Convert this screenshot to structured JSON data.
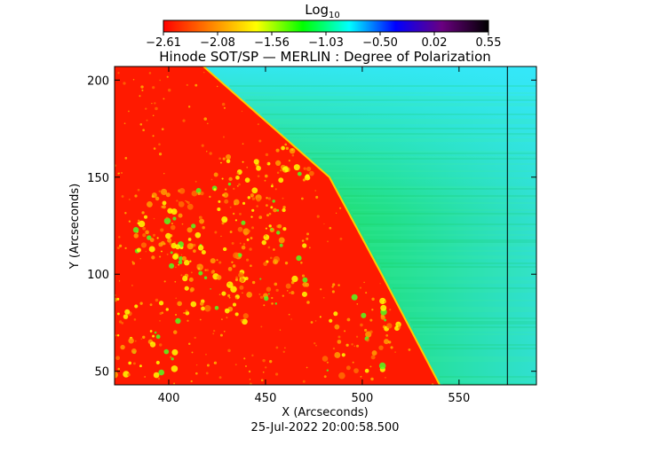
{
  "chart_data": {
    "type": "heatmap",
    "title": "Hinode SOT/SP — MERLIN : Degree of Polarization",
    "xlabel": "X (Arcseconds)",
    "ylabel": "Y (Arcseconds)",
    "xlim": [
      372,
      590
    ],
    "ylim": [
      43,
      207
    ],
    "x_ticks": [
      400,
      450,
      500,
      550
    ],
    "y_ticks": [
      50,
      100,
      150,
      200
    ],
    "colorbar": {
      "label_main": "Log",
      "label_sub": "10",
      "ticks": [
        "−2.61",
        "−2.08",
        "−1.56",
        "−1.03",
        "−0.50",
        "0.02",
        "0.55"
      ],
      "range": [
        -2.61,
        0.55
      ],
      "colors": [
        "#ff0000",
        "#ff8000",
        "#ffff00",
        "#00ff00",
        "#00ffff",
        "#0000ff",
        "#6a0080",
        "#000000"
      ]
    },
    "limb_x_at_y": [
      [
        43,
        540
      ],
      [
        100,
        510
      ],
      [
        150,
        483
      ],
      [
        207,
        418
      ]
    ],
    "vertical_line_x": 575,
    "inside_disk_color": "#ff1a00",
    "off_limb_color": "#22dd55",
    "timestamp": "25-Jul-2022 20:00:58.500"
  }
}
